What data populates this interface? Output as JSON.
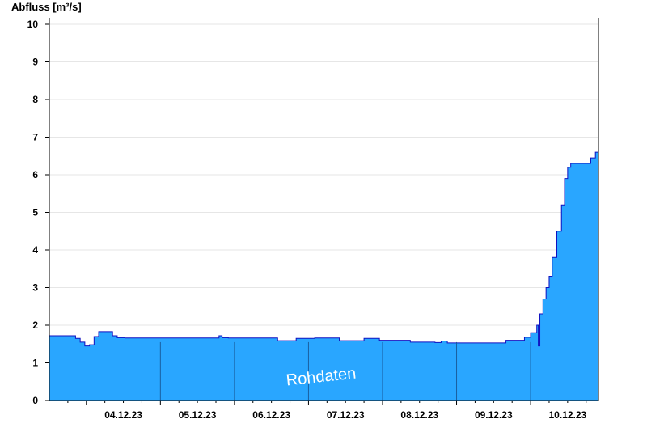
{
  "chart_data": {
    "type": "area",
    "title": "",
    "ylabel": "Abfluss [m³/s]",
    "xlabel": "",
    "ylim": [
      0,
      10
    ],
    "xlim": [
      "2023-12-03T12:00",
      "2023-12-10T22:00"
    ],
    "yticks": [
      0,
      1,
      2,
      3,
      4,
      5,
      6,
      7,
      8,
      9,
      10
    ],
    "xticks": [
      "04.12.23",
      "05.12.23",
      "06.12.23",
      "07.12.23",
      "08.12.23",
      "09.12.23",
      "10.12.23"
    ],
    "grid": true,
    "watermark": "Rohdaten",
    "fill_color": "#29a6ff",
    "line_color": "#1010c0",
    "series": [
      {
        "x": [
          "2023-12-03T12:00",
          "2023-12-03T19:00",
          "2023-12-03T20:30",
          "2023-12-03T22:00",
          "2023-12-03T23:30",
          "2023-12-04T01:00",
          "2023-12-04T02:30",
          "2023-12-04T04:00",
          "2023-12-04T06:00",
          "2023-12-04T08:30",
          "2023-12-04T10:00",
          "2023-12-04T12:30",
          "2023-12-04T15:00",
          "2023-12-04T18:00",
          "2023-12-05T12:00",
          "2023-12-05T18:00",
          "2023-12-05T19:00",
          "2023-12-05T20:00",
          "2023-12-05T22:00",
          "2023-12-06T08:00",
          "2023-12-06T14:00",
          "2023-12-06T20:00",
          "2023-12-07T02:00",
          "2023-12-07T08:00",
          "2023-12-07T10:00",
          "2023-12-07T14:00",
          "2023-12-07T18:00",
          "2023-12-07T23:00",
          "2023-12-08T07:00",
          "2023-12-08T09:00",
          "2023-12-08T17:00",
          "2023-12-08T19:00",
          "2023-12-08T21:00",
          "2023-12-09T03:00",
          "2023-12-09T12:00",
          "2023-12-09T16:00",
          "2023-12-09T22:00",
          "2023-12-10T00:00",
          "2023-12-10T02:00",
          "2023-12-10T02:30",
          "2023-12-10T03:00",
          "2023-12-10T04:00",
          "2023-12-10T05:00",
          "2023-12-10T06:00",
          "2023-12-10T07:00",
          "2023-12-10T08:30",
          "2023-12-10T10:00",
          "2023-12-10T11:00",
          "2023-12-10T12:00",
          "2023-12-10T13:00",
          "2023-12-10T14:00",
          "2023-12-10T15:00",
          "2023-12-10T18:00",
          "2023-12-10T19:30",
          "2023-12-10T21:00",
          "2023-12-10T22:00"
        ],
        "values": [
          1.72,
          1.72,
          1.65,
          1.55,
          1.45,
          1.48,
          1.7,
          1.83,
          1.83,
          1.72,
          1.67,
          1.66,
          1.66,
          1.66,
          1.66,
          1.66,
          1.72,
          1.67,
          1.66,
          1.66,
          1.59,
          1.65,
          1.66,
          1.66,
          1.59,
          1.59,
          1.65,
          1.6,
          1.6,
          1.55,
          1.54,
          1.58,
          1.53,
          1.53,
          1.53,
          1.6,
          1.68,
          1.8,
          2.0,
          1.45,
          2.3,
          2.7,
          3.0,
          3.3,
          3.8,
          4.5,
          5.2,
          5.9,
          6.2,
          6.3,
          6.3,
          6.3,
          6.3,
          6.45,
          6.6,
          6.6
        ]
      }
    ]
  }
}
